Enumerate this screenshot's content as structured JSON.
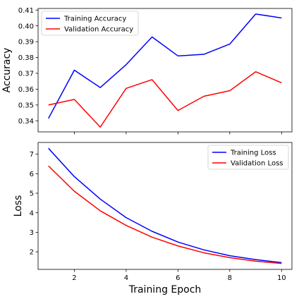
{
  "chart_data": [
    {
      "type": "line",
      "title": "",
      "xlabel": "",
      "ylabel": "Accuracy",
      "xlim": [
        0.6,
        10.4
      ],
      "ylim": [
        0.333,
        0.411
      ],
      "xticks": [
        2,
        4,
        6,
        8,
        10
      ],
      "show_xtick_labels": false,
      "yticks": [
        0.34,
        0.35,
        0.36,
        0.37,
        0.38,
        0.39,
        0.4,
        0.41
      ],
      "ytick_labels": [
        "0.34",
        "0.35",
        "0.36",
        "0.37",
        "0.38",
        "0.39",
        "0.40",
        "0.41"
      ],
      "grid": false,
      "legend_position": "upper-left",
      "x": [
        1,
        2,
        3,
        4,
        5,
        6,
        7,
        8,
        9,
        10
      ],
      "series": [
        {
          "name": "Training Accuracy",
          "color": "#0000ff",
          "values": [
            0.3415,
            0.372,
            0.361,
            0.3755,
            0.393,
            0.381,
            0.382,
            0.3885,
            0.4075,
            0.405
          ]
        },
        {
          "name": "Validation Accuracy",
          "color": "#ff0000",
          "values": [
            0.35,
            0.3535,
            0.336,
            0.3605,
            0.366,
            0.3465,
            0.3555,
            0.359,
            0.371,
            0.364
          ]
        }
      ]
    },
    {
      "type": "line",
      "title": "",
      "xlabel": "Training Epoch",
      "ylabel": "Loss",
      "xlim": [
        0.6,
        10.4
      ],
      "ylim": [
        1.1,
        7.6
      ],
      "xticks": [
        2,
        4,
        6,
        8,
        10
      ],
      "xtick_labels": [
        "2",
        "4",
        "6",
        "8",
        "10"
      ],
      "show_xtick_labels": true,
      "yticks": [
        2,
        3,
        4,
        5,
        6,
        7
      ],
      "ytick_labels": [
        "2",
        "3",
        "4",
        "5",
        "6",
        "7"
      ],
      "grid": false,
      "legend_position": "upper-right",
      "x": [
        1,
        2,
        3,
        4,
        5,
        6,
        7,
        8,
        9,
        10
      ],
      "series": [
        {
          "name": "Training Loss",
          "color": "#0000ff",
          "values": [
            7.3,
            5.85,
            4.7,
            3.75,
            3.05,
            2.5,
            2.1,
            1.8,
            1.6,
            1.45
          ]
        },
        {
          "name": "Validation Loss",
          "color": "#ff0000",
          "values": [
            6.4,
            5.1,
            4.1,
            3.35,
            2.75,
            2.3,
            1.95,
            1.7,
            1.52,
            1.4
          ]
        }
      ]
    }
  ]
}
